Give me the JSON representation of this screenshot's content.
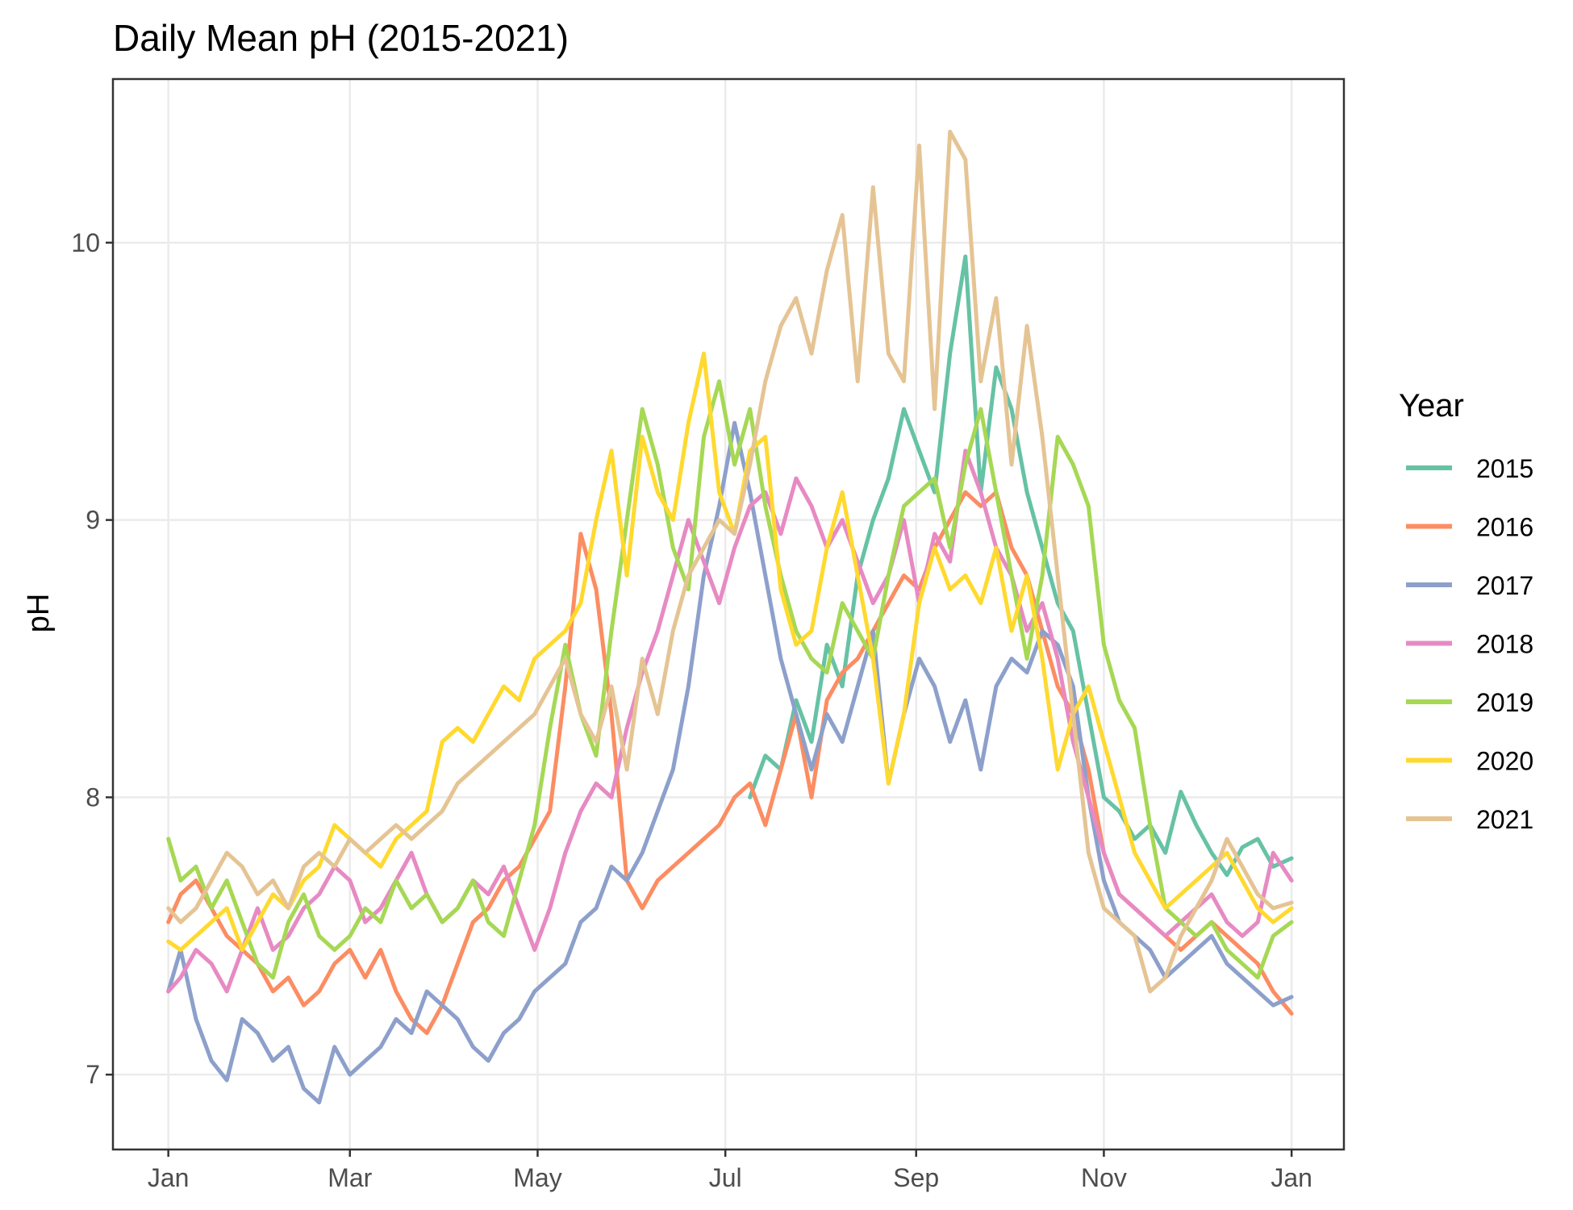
{
  "chart_data": {
    "type": "line",
    "title": "Daily Mean pH (2015-2021)",
    "xlabel": "",
    "ylabel": "pH",
    "x_ticks": [
      "Jan",
      "Mar",
      "May",
      "Jul",
      "Sep",
      "Nov",
      "Jan"
    ],
    "x_tick_days": [
      1,
      60,
      121,
      182,
      244,
      305,
      366
    ],
    "y_ticks": [
      "7",
      "8",
      "9",
      "10"
    ],
    "y_tick_values": [
      7,
      8,
      9,
      10
    ],
    "xlim": [
      -17,
      383
    ],
    "ylim": [
      6.73,
      10.59
    ],
    "grid": true,
    "legend": {
      "title": "Year",
      "placement": "right"
    },
    "x_unit": "day of year",
    "series": [
      {
        "name": "2015",
        "color": "#66C2A5",
        "x": [
          190,
          195,
          200,
          205,
          210,
          215,
          220,
          225,
          230,
          235,
          240,
          245,
          250,
          255,
          260,
          265,
          270,
          275,
          280,
          285,
          290,
          295,
          300,
          305,
          310,
          315,
          320,
          325,
          330,
          335,
          340,
          345,
          350,
          355,
          360,
          366
        ],
        "y": [
          8.0,
          8.15,
          8.1,
          8.35,
          8.2,
          8.55,
          8.4,
          8.8,
          9.0,
          9.15,
          9.4,
          9.25,
          9.1,
          9.6,
          9.95,
          9.1,
          9.55,
          9.4,
          9.1,
          8.9,
          8.7,
          8.6,
          8.3,
          8.0,
          7.95,
          7.85,
          7.9,
          7.8,
          8.02,
          7.9,
          7.8,
          7.72,
          7.82,
          7.85,
          7.75,
          7.78
        ]
      },
      {
        "name": "2016",
        "color": "#FC8D62",
        "x": [
          1,
          5,
          10,
          15,
          20,
          25,
          30,
          35,
          40,
          45,
          50,
          55,
          60,
          65,
          70,
          75,
          80,
          85,
          90,
          95,
          100,
          105,
          110,
          115,
          120,
          125,
          130,
          135,
          140,
          145,
          150,
          155,
          160,
          165,
          170,
          175,
          180,
          185,
          190,
          195,
          200,
          205,
          210,
          215,
          220,
          225,
          230,
          235,
          240,
          245,
          250,
          255,
          260,
          265,
          270,
          275,
          280,
          285,
          290,
          295,
          300,
          305,
          310,
          315,
          320,
          325,
          330,
          335,
          340,
          345,
          350,
          355,
          360,
          366
        ],
        "y": [
          7.55,
          7.65,
          7.7,
          7.6,
          7.5,
          7.45,
          7.4,
          7.3,
          7.35,
          7.25,
          7.3,
          7.4,
          7.45,
          7.35,
          7.45,
          7.3,
          7.2,
          7.15,
          7.25,
          7.4,
          7.55,
          7.6,
          7.7,
          7.75,
          7.85,
          7.95,
          8.4,
          8.95,
          8.75,
          8.3,
          7.7,
          7.6,
          7.7,
          7.75,
          7.8,
          7.85,
          7.9,
          8.0,
          8.05,
          7.9,
          8.1,
          8.3,
          8.0,
          8.35,
          8.45,
          8.5,
          8.6,
          8.7,
          8.8,
          8.75,
          8.9,
          9.0,
          9.1,
          9.05,
          9.1,
          8.9,
          8.8,
          8.6,
          8.4,
          8.3,
          8.1,
          7.8,
          7.65,
          7.6,
          7.55,
          7.5,
          7.45,
          7.5,
          7.55,
          7.5,
          7.45,
          7.4,
          7.3,
          7.22
        ]
      },
      {
        "name": "2017",
        "color": "#8DA0CB",
        "x": [
          1,
          5,
          10,
          15,
          20,
          25,
          30,
          35,
          40,
          45,
          50,
          55,
          60,
          65,
          70,
          75,
          80,
          85,
          90,
          95,
          100,
          105,
          110,
          115,
          120,
          125,
          130,
          135,
          140,
          145,
          150,
          155,
          160,
          165,
          170,
          175,
          180,
          185,
          190,
          195,
          200,
          205,
          210,
          215,
          220,
          225,
          230,
          235,
          240,
          245,
          250,
          255,
          260,
          265,
          270,
          275,
          280,
          285,
          290,
          295,
          300,
          305,
          310,
          315,
          320,
          325,
          330,
          335,
          340,
          345,
          350,
          355,
          360,
          366
        ],
        "y": [
          7.3,
          7.45,
          7.2,
          7.05,
          6.98,
          7.2,
          7.15,
          7.05,
          7.1,
          6.95,
          6.9,
          7.1,
          7.0,
          7.05,
          7.1,
          7.2,
          7.15,
          7.3,
          7.25,
          7.2,
          7.1,
          7.05,
          7.15,
          7.2,
          7.3,
          7.35,
          7.4,
          7.55,
          7.6,
          7.75,
          7.7,
          7.8,
          7.95,
          8.1,
          8.4,
          8.8,
          9.05,
          9.35,
          9.1,
          8.8,
          8.5,
          8.3,
          8.1,
          8.3,
          8.2,
          8.4,
          8.6,
          8.05,
          8.3,
          8.5,
          8.4,
          8.2,
          8.35,
          8.1,
          8.4,
          8.5,
          8.45,
          8.6,
          8.55,
          8.4,
          8.0,
          7.7,
          7.55,
          7.5,
          7.45,
          7.35,
          7.4,
          7.45,
          7.5,
          7.4,
          7.35,
          7.3,
          7.25,
          7.28
        ]
      },
      {
        "name": "2018",
        "color": "#E78AC3",
        "x": [
          1,
          5,
          10,
          15,
          20,
          25,
          30,
          35,
          40,
          45,
          50,
          55,
          60,
          65,
          70,
          75,
          80,
          85,
          90,
          95,
          100,
          105,
          110,
          115,
          120,
          125,
          130,
          135,
          140,
          145,
          150,
          155,
          160,
          165,
          170,
          175,
          180,
          185,
          190,
          195,
          200,
          205,
          210,
          215,
          220,
          225,
          230,
          235,
          240,
          245,
          250,
          255,
          260,
          265,
          270,
          275,
          280,
          285,
          290,
          295,
          300,
          305,
          310,
          315,
          320,
          325,
          330,
          335,
          340,
          345,
          350,
          355,
          360,
          366
        ],
        "y": [
          7.3,
          7.35,
          7.45,
          7.4,
          7.3,
          7.45,
          7.6,
          7.45,
          7.5,
          7.6,
          7.65,
          7.75,
          7.7,
          7.55,
          7.6,
          7.7,
          7.8,
          7.65,
          7.55,
          7.6,
          7.7,
          7.65,
          7.75,
          7.6,
          7.45,
          7.6,
          7.8,
          7.95,
          8.05,
          8.0,
          8.25,
          8.45,
          8.6,
          8.8,
          9.0,
          8.85,
          8.7,
          8.9,
          9.05,
          9.1,
          8.95,
          9.15,
          9.05,
          8.9,
          9.0,
          8.85,
          8.7,
          8.8,
          9.0,
          8.7,
          8.95,
          8.85,
          9.25,
          9.1,
          8.9,
          8.8,
          8.6,
          8.7,
          8.5,
          8.2,
          8.0,
          7.8,
          7.65,
          7.6,
          7.55,
          7.5,
          7.55,
          7.6,
          7.65,
          7.55,
          7.5,
          7.55,
          7.8,
          7.7
        ]
      },
      {
        "name": "2019",
        "color": "#A6D854",
        "x": [
          1,
          5,
          10,
          15,
          20,
          25,
          30,
          35,
          40,
          45,
          50,
          55,
          60,
          65,
          70,
          75,
          80,
          85,
          90,
          95,
          100,
          105,
          110,
          115,
          120,
          125,
          130,
          135,
          140,
          145,
          150,
          155,
          160,
          165,
          170,
          175,
          180,
          185,
          190,
          195,
          200,
          205,
          210,
          215,
          220,
          225,
          230,
          235,
          240,
          245,
          250,
          255,
          260,
          265,
          270,
          275,
          280,
          285,
          290,
          295,
          300,
          305,
          310,
          315,
          320,
          325,
          330,
          335,
          340,
          345,
          350,
          355,
          360,
          366
        ],
        "y": [
          7.85,
          7.7,
          7.75,
          7.6,
          7.7,
          7.55,
          7.4,
          7.35,
          7.55,
          7.65,
          7.5,
          7.45,
          7.5,
          7.6,
          7.55,
          7.7,
          7.6,
          7.65,
          7.55,
          7.6,
          7.7,
          7.55,
          7.5,
          7.7,
          7.9,
          8.25,
          8.55,
          8.3,
          8.15,
          8.6,
          9.0,
          9.4,
          9.2,
          8.9,
          8.75,
          9.3,
          9.5,
          9.2,
          9.4,
          9.05,
          8.8,
          8.6,
          8.5,
          8.45,
          8.7,
          8.6,
          8.5,
          8.8,
          9.05,
          9.1,
          9.15,
          8.9,
          9.2,
          9.4,
          9.1,
          8.8,
          8.5,
          8.8,
          9.3,
          9.2,
          9.05,
          8.55,
          8.35,
          8.25,
          7.9,
          7.6,
          7.55,
          7.5,
          7.55,
          7.45,
          7.4,
          7.35,
          7.5,
          7.55
        ]
      },
      {
        "name": "2020",
        "color": "#FFD92F",
        "x": [
          1,
          5,
          10,
          15,
          20,
          25,
          30,
          35,
          40,
          45,
          50,
          55,
          60,
          65,
          70,
          75,
          80,
          85,
          90,
          95,
          100,
          105,
          110,
          115,
          120,
          125,
          130,
          135,
          140,
          145,
          150,
          155,
          160,
          165,
          170,
          175,
          180,
          185,
          190,
          195,
          200,
          205,
          210,
          215,
          220,
          225,
          230,
          235,
          240,
          245,
          250,
          255,
          260,
          265,
          270,
          275,
          280,
          285,
          290,
          295,
          300,
          305,
          310,
          315,
          320,
          325,
          330,
          335,
          340,
          345,
          350,
          355,
          360,
          366
        ],
        "y": [
          7.48,
          7.45,
          7.5,
          7.55,
          7.6,
          7.45,
          7.55,
          7.65,
          7.6,
          7.7,
          7.75,
          7.9,
          7.85,
          7.8,
          7.75,
          7.85,
          7.9,
          7.95,
          8.2,
          8.25,
          8.2,
          8.3,
          8.4,
          8.35,
          8.5,
          8.55,
          8.6,
          8.7,
          9.0,
          9.25,
          8.8,
          9.3,
          9.1,
          9.0,
          9.35,
          9.6,
          9.1,
          8.95,
          9.25,
          9.3,
          8.75,
          8.55,
          8.6,
          8.9,
          9.1,
          8.8,
          8.5,
          8.05,
          8.3,
          8.7,
          8.9,
          8.75,
          8.8,
          8.7,
          8.9,
          8.6,
          8.8,
          8.5,
          8.1,
          8.3,
          8.4,
          8.2,
          8.0,
          7.8,
          7.7,
          7.6,
          7.65,
          7.7,
          7.75,
          7.8,
          7.7,
          7.6,
          7.55,
          7.6
        ]
      },
      {
        "name": "2021",
        "color": "#E5C494",
        "x": [
          1,
          5,
          10,
          15,
          20,
          25,
          30,
          35,
          40,
          45,
          50,
          55,
          60,
          65,
          70,
          75,
          80,
          85,
          90,
          95,
          100,
          105,
          110,
          115,
          120,
          125,
          130,
          135,
          140,
          145,
          150,
          155,
          160,
          165,
          170,
          175,
          180,
          185,
          190,
          195,
          200,
          205,
          210,
          215,
          220,
          225,
          230,
          235,
          240,
          245,
          250,
          255,
          260,
          265,
          270,
          275,
          280,
          285,
          290,
          295,
          300,
          305,
          310,
          315,
          320,
          325,
          330,
          335,
          340,
          345,
          350,
          355,
          360,
          366
        ],
        "y": [
          7.6,
          7.55,
          7.6,
          7.7,
          7.8,
          7.75,
          7.65,
          7.7,
          7.6,
          7.75,
          7.8,
          7.75,
          7.85,
          7.8,
          7.85,
          7.9,
          7.85,
          7.9,
          7.95,
          8.05,
          8.1,
          8.15,
          8.2,
          8.25,
          8.3,
          8.4,
          8.5,
          8.3,
          8.2,
          8.4,
          8.1,
          8.5,
          8.3,
          8.6,
          8.8,
          8.9,
          9.0,
          8.95,
          9.2,
          9.5,
          9.7,
          9.8,
          9.6,
          9.9,
          10.1,
          9.5,
          10.2,
          9.6,
          9.5,
          10.35,
          9.4,
          10.4,
          10.3,
          9.5,
          9.8,
          9.2,
          9.7,
          9.3,
          8.8,
          8.3,
          7.8,
          7.6,
          7.55,
          7.5,
          7.3,
          7.35,
          7.5,
          7.6,
          7.7,
          7.85,
          7.75,
          7.65,
          7.6,
          7.62
        ]
      }
    ]
  }
}
